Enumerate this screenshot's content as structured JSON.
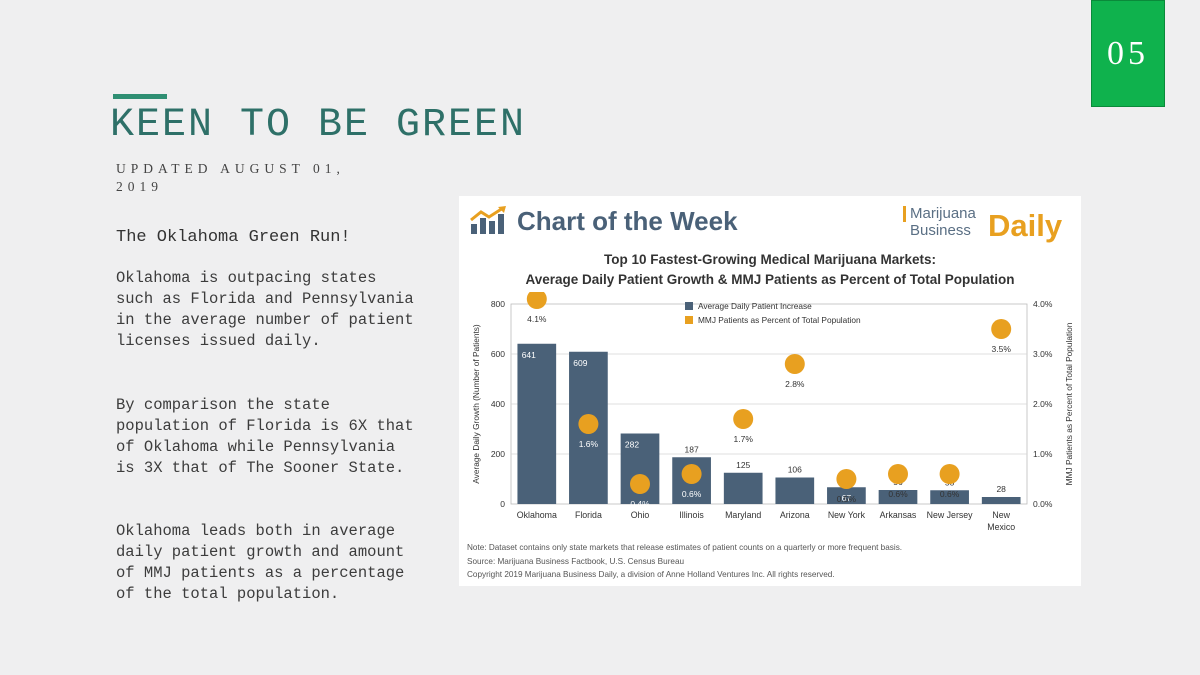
{
  "slide": {
    "page_number": "05",
    "title": "KEEN TO BE GREEN",
    "subtitle": "UPDATED AUGUST 01, 2019",
    "heading": "The Oklahoma Green Run!",
    "paragraphs": [
      "Oklahoma is outpacing states such as Florida and Pennsylvania in the average number of patient licenses issued daily.",
      "By comparison the state population of Florida is 6X that of Oklahoma while Pennsylvania is 3X that of The Sooner State.",
      "Oklahoma leads both in average daily patient growth and amount of MMJ patients as a percentage of the total population."
    ],
    "accent_color": "#2f8f73",
    "badge_color": "#0fb24d"
  },
  "chart_header": {
    "label": "Chart of the Week",
    "brand_line1": "Marijuana",
    "brand_line2": "Business",
    "brand_daily": "Daily",
    "icon": "bar-chart-trend-icon"
  },
  "chart_data": {
    "type": "bar",
    "title_line1": "Top 10 Fastest-Growing Medical Marijuana Markets:",
    "title_line2": "Average Daily Patient Growth & MMJ Patients as Percent of Total Population",
    "categories": [
      "Oklahoma",
      "Florida",
      "Ohio",
      "Illinois",
      "Maryland",
      "Arizona",
      "New York",
      "Arkansas",
      "New Jersey",
      "New Mexico"
    ],
    "series": [
      {
        "name": "Average Daily Patient Increase",
        "values": [
          641,
          609,
          282,
          187,
          125,
          106,
          67,
          56,
          55,
          28
        ],
        "color": "#4a6178",
        "axis": "left"
      },
      {
        "name": "MMJ Patients as Percent of Total Population",
        "values": [
          4.1,
          1.6,
          0.4,
          0.6,
          1.7,
          2.8,
          0.5,
          0.6,
          0.6,
          3.5
        ],
        "color": "#e8a020",
        "axis": "right"
      }
    ],
    "bar_labels": [
      "641",
      "609",
      "282",
      "187",
      "125",
      "106",
      "67",
      "56",
      "55",
      "28"
    ],
    "dot_labels": [
      "4.1%",
      "1.6%",
      "0.4%",
      "0.6%",
      "1.7%",
      "2.8%",
      "0.5%",
      "0.6%",
      "0.6%",
      "3.5%"
    ],
    "ylabel": "Average Daily Growth (Number of Patients)",
    "y2label": "MMJ Patients as Percent of Total Population",
    "ylim": [
      0,
      800
    ],
    "y2lim": [
      0,
      4.0
    ],
    "yticks": [
      "0",
      "200",
      "400",
      "600",
      "800"
    ],
    "y2ticks": [
      "0.0%",
      "1.0%",
      "2.0%",
      "3.0%",
      "4.0%"
    ],
    "grid": true,
    "legend_position": "top-center",
    "notes": [
      "Note: Dataset contains only state markets that release estimates of patient counts on a quarterly or more frequent basis.",
      "Source: Marijuana Business Factbook, U.S. Census Bureau",
      "Copyright 2019 Marijuana Business Daily, a division of Anne Holland Ventures Inc. All rights reserved."
    ]
  }
}
